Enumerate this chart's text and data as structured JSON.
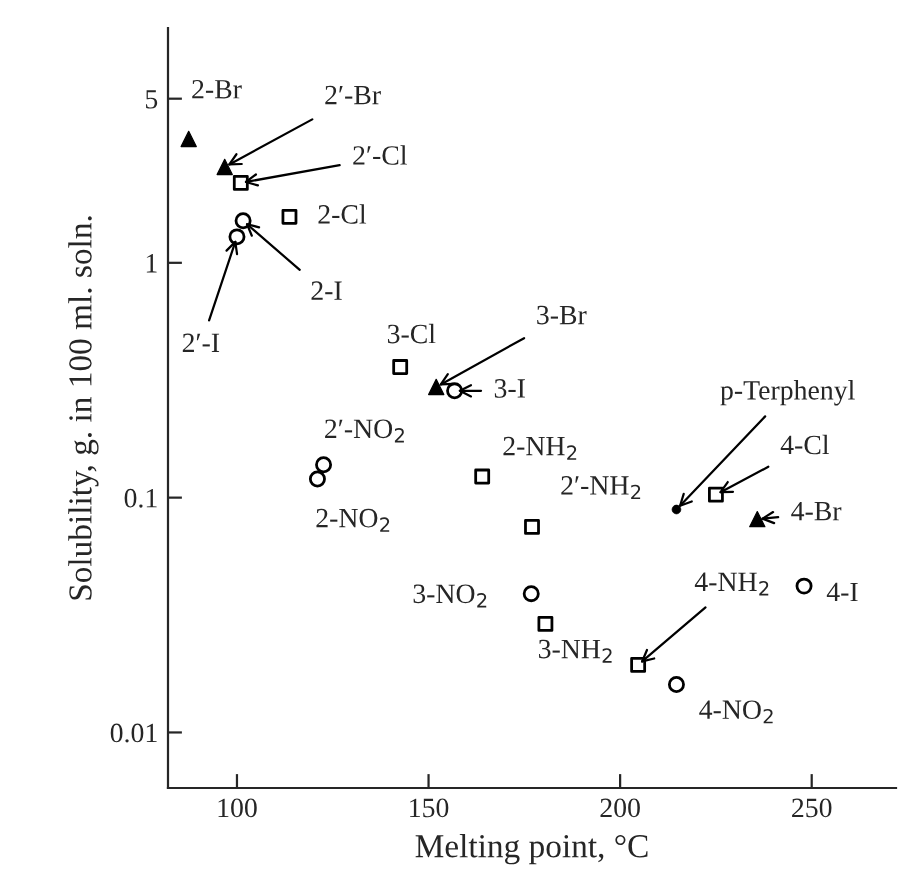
{
  "chart_data": {
    "type": "scatter",
    "xlabel": "Melting point, °C",
    "ylabel": "Solubility, g. in 100 ml. soln.",
    "log": "y",
    "xlim": [
      82,
      272
    ],
    "xticks": [
      100,
      150,
      200,
      250
    ],
    "ylim": [
      0.0058,
      10
    ],
    "yticks": [
      0.01,
      {
        "value": 0.1,
        "label": "0.1"
      },
      1,
      5
    ],
    "grid": false,
    "legend": false,
    "series": [
      {
        "marker": "triangle",
        "color": "#000000",
        "x": [
          87.4,
          96.8,
          152,
          235.8
        ],
        "values": [
          3.37,
          2.56,
          0.296,
          0.081
        ]
      },
      {
        "marker": "square",
        "color": "#000000",
        "x": [
          101,
          113.7,
          142.6,
          164,
          177,
          225,
          180.5,
          204.7
        ],
        "values": [
          2.19,
          1.57,
          0.36,
          0.123,
          0.075,
          0.103,
          0.029,
          0.0194
        ]
      },
      {
        "marker": "circle",
        "color": "#000000",
        "x": [
          101.6,
          100,
          156.8,
          122.6,
          121,
          248,
          176.8,
          214.7
        ],
        "values": [
          1.51,
          1.29,
          0.285,
          0.138,
          0.12,
          0.042,
          0.039,
          0.016
        ]
      },
      {
        "marker": "dot",
        "color": "#000000",
        "x": [
          214.7
        ],
        "values": [
          0.089
        ]
      }
    ],
    "annotations": [
      {
        "text": "2-Br",
        "x": 87.4,
        "y": 3.37
      },
      {
        "text": "2′-Br",
        "x": 96.8,
        "y": 2.56
      },
      {
        "text": "2′-Cl",
        "x": 101,
        "y": 2.19
      },
      {
        "text": "2-Cl",
        "x": 113.7,
        "y": 1.57
      },
      {
        "text": "2-I",
        "x": 101.6,
        "y": 1.51
      },
      {
        "text": "2′-I",
        "x": 100,
        "y": 1.29
      },
      {
        "text": "3-Cl",
        "x": 142.6,
        "y": 0.36
      },
      {
        "text": "3-Br",
        "x": 152,
        "y": 0.296
      },
      {
        "text": "3-I",
        "x": 156.8,
        "y": 0.285
      },
      {
        "text": "2′-NO$_{2}$",
        "x": 122.6,
        "y": 0.138
      },
      {
        "text": "2-NO$_{2}$",
        "x": 121,
        "y": 0.12
      },
      {
        "text": "2-NH$_{2}$",
        "x": 164,
        "y": 0.123
      },
      {
        "text": "2′-NH$_{2}$",
        "x": 177,
        "y": 0.075
      },
      {
        "text": "p-Terphenyl",
        "x": 214.7,
        "y": 0.089
      },
      {
        "text": "4-Cl",
        "x": 225,
        "y": 0.103
      },
      {
        "text": "4-Br",
        "x": 235.8,
        "y": 0.081
      },
      {
        "text": "4-I",
        "x": 248,
        "y": 0.042
      },
      {
        "text": "3-NO$_{2}$",
        "x": 176.8,
        "y": 0.039
      },
      {
        "text": "3-NH$_{2}$",
        "x": 180.5,
        "y": 0.029
      },
      {
        "text": "4-NH$_{2}$",
        "x": 204.7,
        "y": 0.0194
      },
      {
        "text": "4-NO$_{2}$",
        "x": 214.7,
        "y": 0.016
      }
    ]
  }
}
